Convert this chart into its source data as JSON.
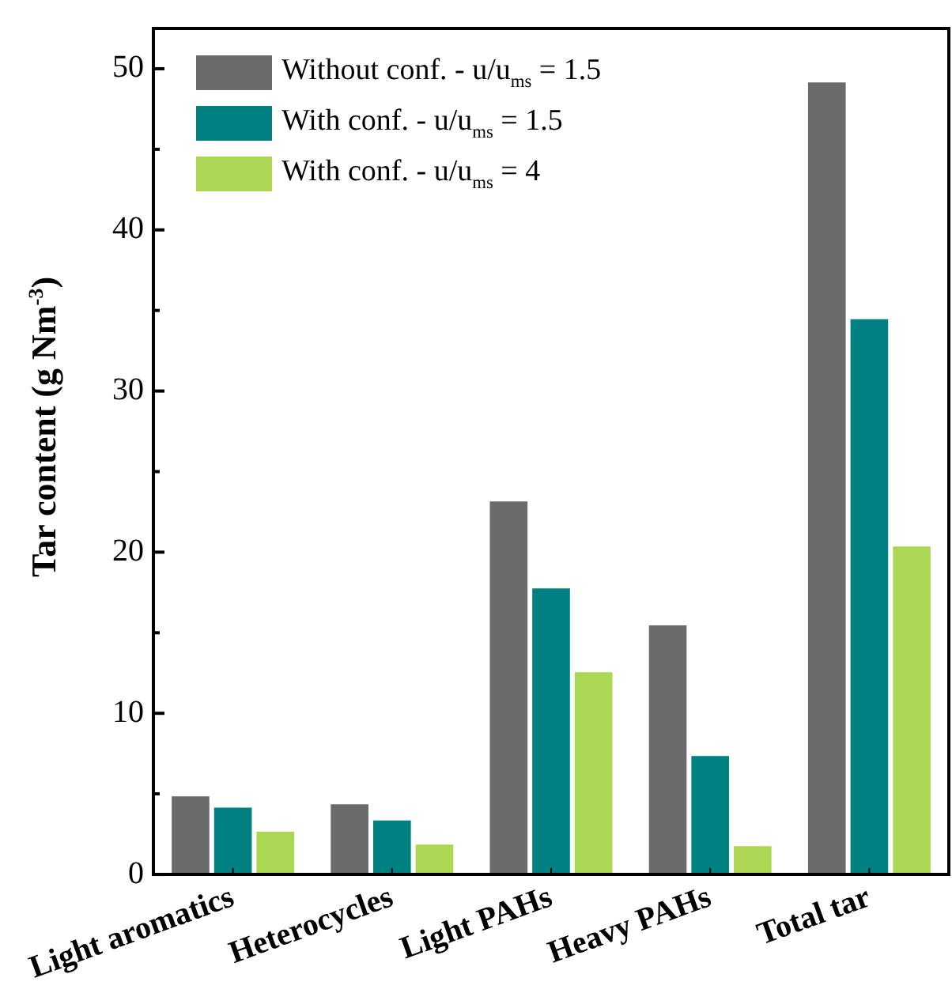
{
  "chart_data": {
    "type": "bar",
    "ylabel": "Tar content (g Nm$^{-3}$)",
    "categories": [
      "Light aromatics",
      "Heterocycles",
      "Light PAHs",
      "Heavy PAHs",
      "Total tar"
    ],
    "series": [
      {
        "name": "Without conf. - u/u$_{ms}$ = 1.5",
        "color": "#6b6b6b",
        "values": [
          5.0,
          4.5,
          23.3,
          15.6,
          49.3
        ]
      },
      {
        "name": "With conf. - u/u$_{ms}$ = 1.5",
        "color": "#008080",
        "values": [
          4.3,
          3.5,
          17.9,
          7.5,
          34.6
        ]
      },
      {
        "name": "With conf. - u/u$_{ms}$ = 4",
        "color": "#acd752",
        "values": [
          2.8,
          2.0,
          12.7,
          1.9,
          20.5
        ]
      }
    ],
    "ylim": [
      0,
      52.5
    ],
    "yticks": [
      0,
      {
        "value": 5,
        "label": null
      },
      10,
      {
        "value": 15,
        "label": null
      },
      20,
      {
        "value": 25,
        "label": null
      },
      30,
      {
        "value": 35,
        "label": null
      },
      40,
      {
        "value": 45,
        "label": null
      },
      50
    ],
    "grid": false,
    "legend": "top left"
  }
}
